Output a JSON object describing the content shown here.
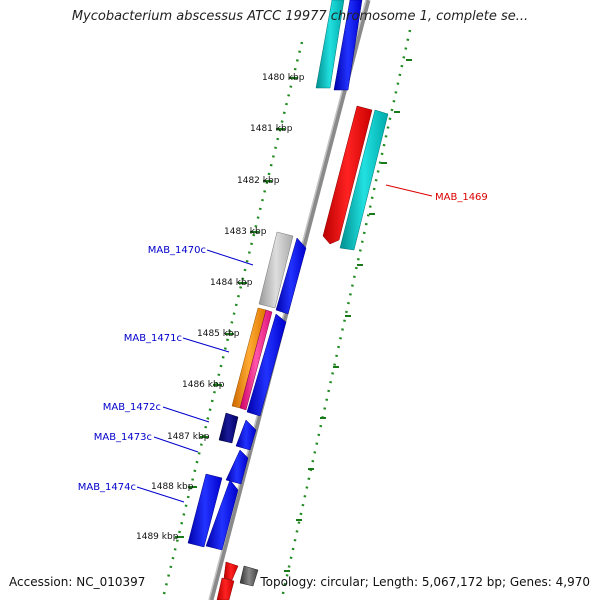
{
  "title": "Mycobacterium abscessus ATCC 19977 chromosome 1, complete se...",
  "accession": "Accession: NC_010397",
  "summary": "Topology: circular; Length: 5,067,172 bp; Genes: 4,970",
  "kbp_ticks": [
    {
      "label": "1480 kbp",
      "kbp": 1480
    },
    {
      "label": "1481 kbp",
      "kbp": 1481
    },
    {
      "label": "1482 kbp",
      "kbp": 1482
    },
    {
      "label": "1483 kbp",
      "kbp": 1483
    },
    {
      "label": "1484 kbp",
      "kbp": 1484
    },
    {
      "label": "1485 kbp",
      "kbp": 1485
    },
    {
      "label": "1486 kbp",
      "kbp": 1486
    },
    {
      "label": "1487 kbp",
      "kbp": 1487
    },
    {
      "label": "1488 kbp",
      "kbp": 1488
    },
    {
      "label": "1489 kbp",
      "kbp": 1489
    }
  ],
  "gene_labels": {
    "mab_1469": "MAB_1469",
    "mab_1470c": "MAB_1470c",
    "mab_1471c": "MAB_1471c",
    "mab_1472c": "MAB_1472c",
    "mab_1473c": "MAB_1473c",
    "mab_1474c": "MAB_1474c"
  },
  "colors": {
    "backbone": "#8a8a8a",
    "forward_gene": "#ff0000",
    "reverse_gene": "#0000ff",
    "rna": "#00cccc",
    "grey_feature": "#bbbbbb",
    "orange_feature": "#ff8c00",
    "pink_feature": "#ff1493",
    "dark_navy": "#00007a",
    "tick_dots": "#228b22",
    "label_forward": "#dd0000",
    "label_reverse": "#0000cc"
  }
}
